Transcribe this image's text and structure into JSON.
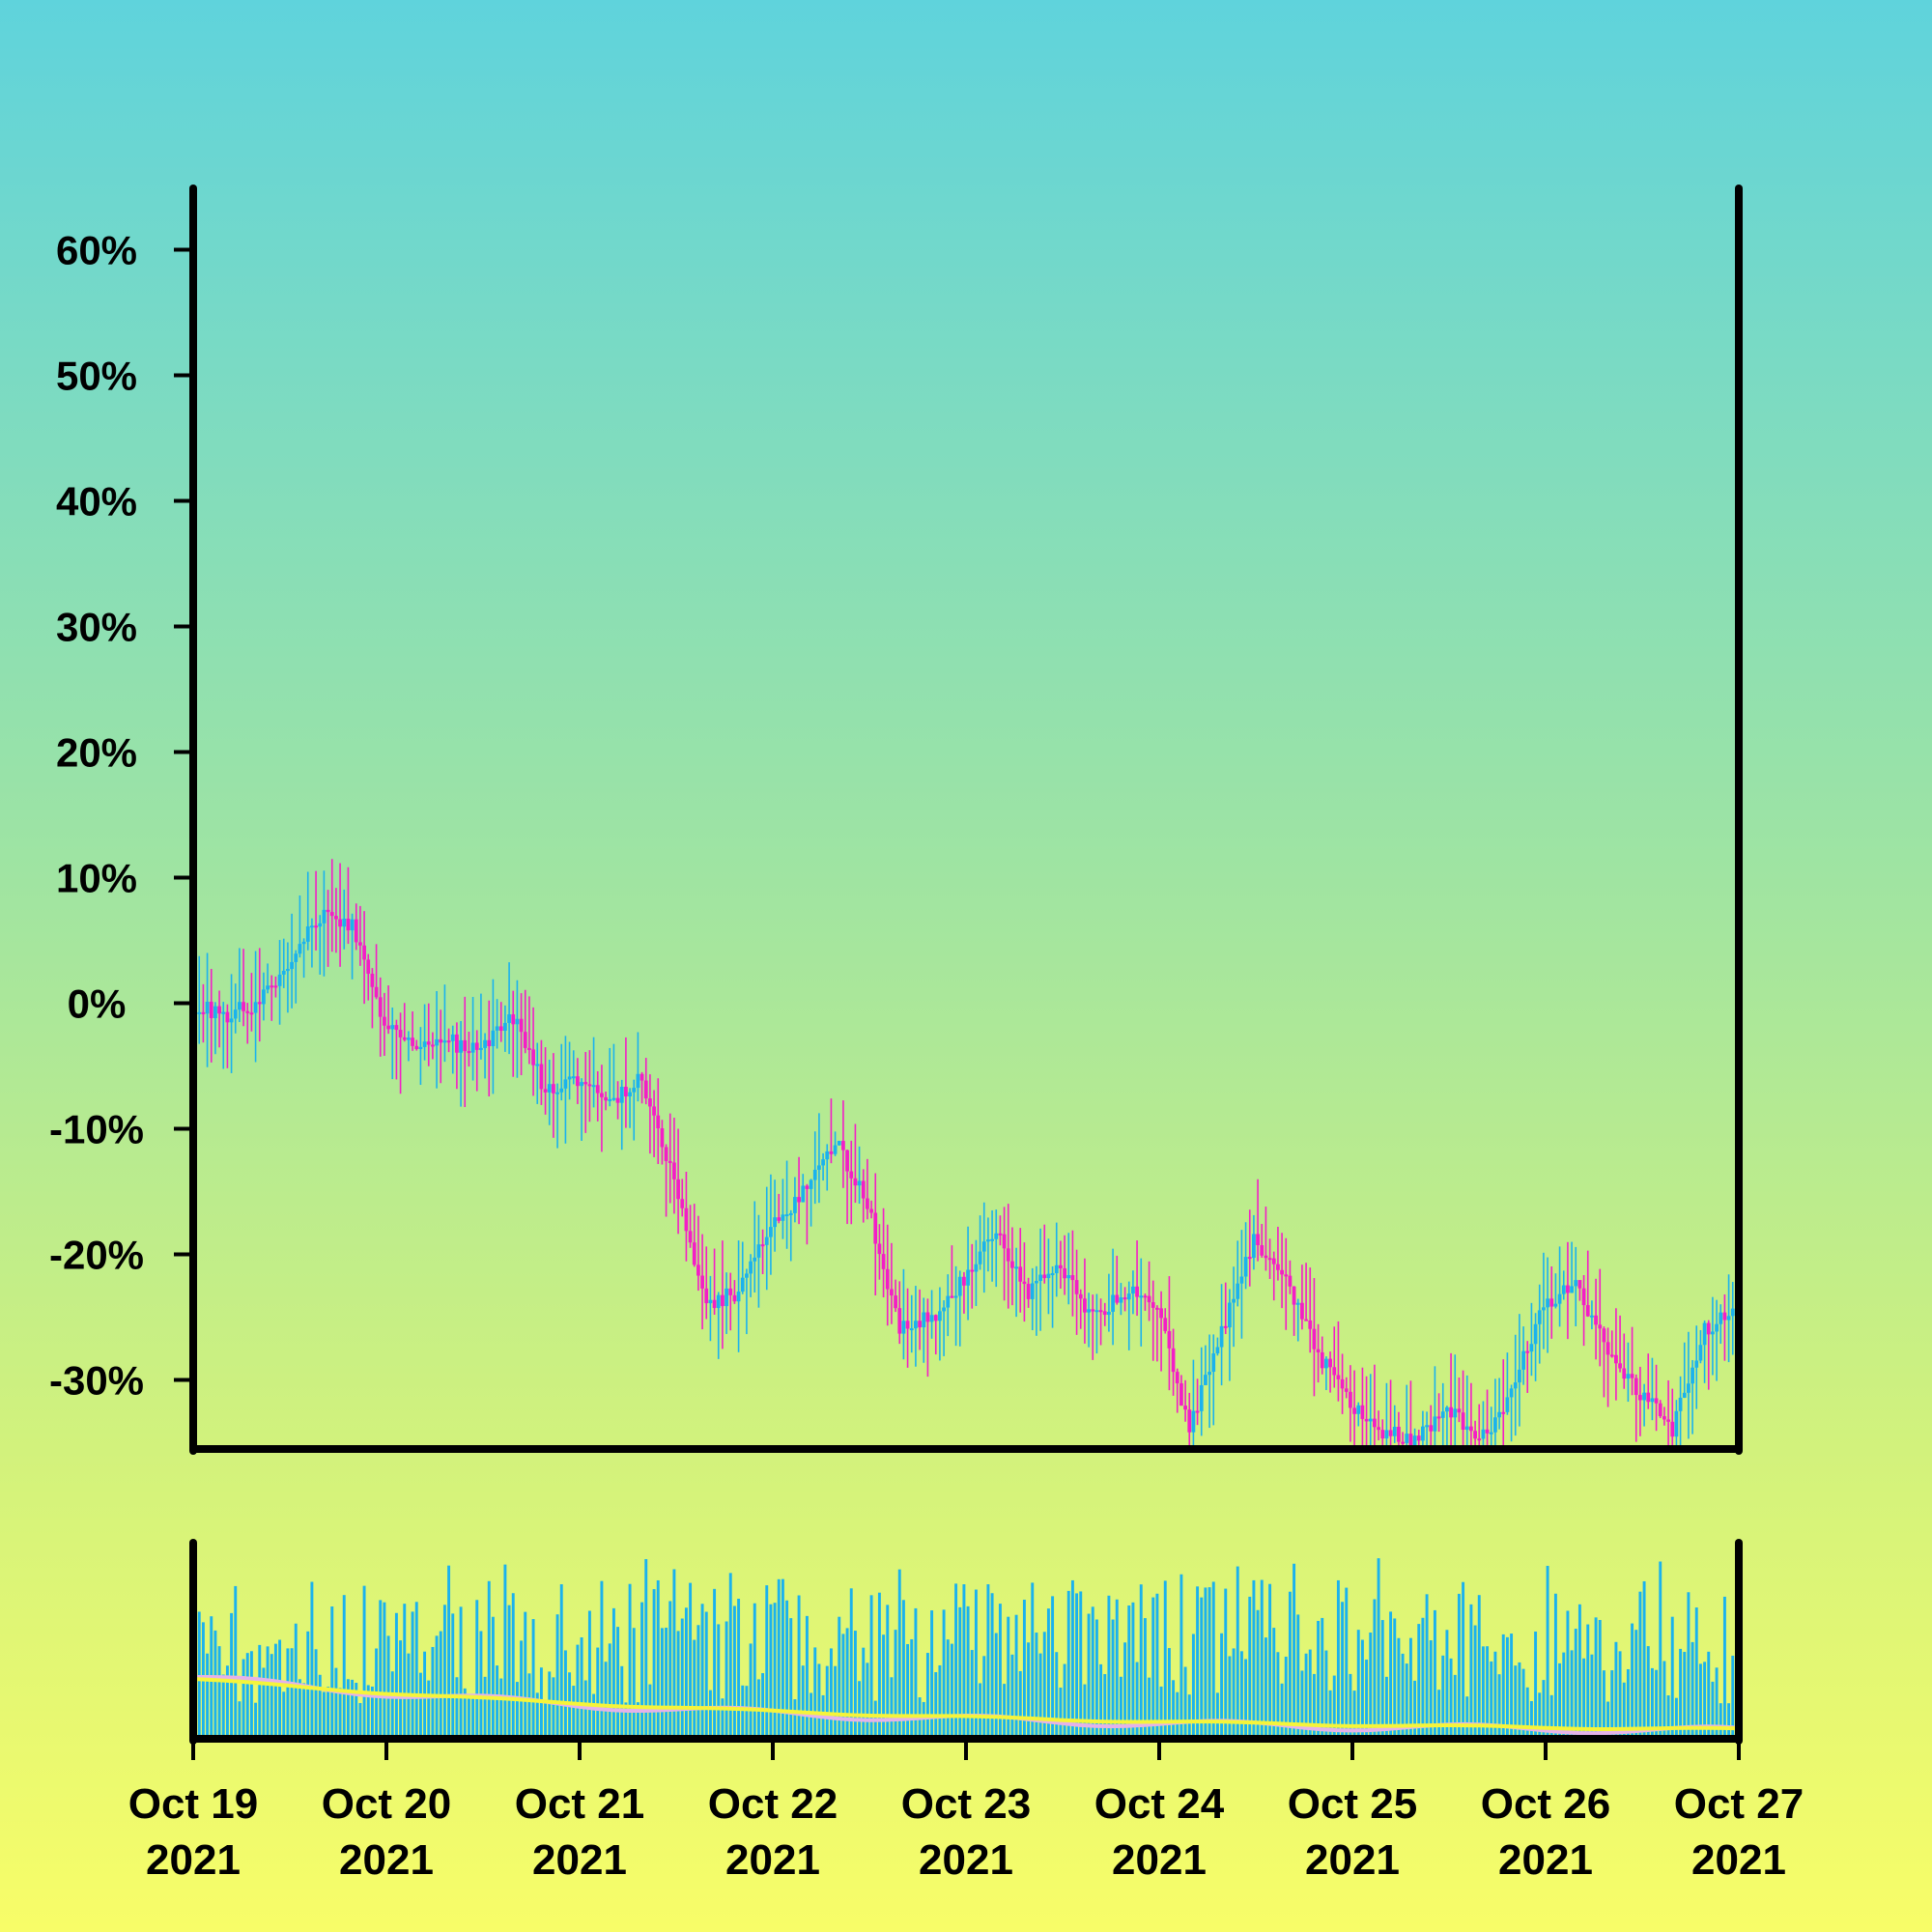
{
  "chart_data": {
    "type": "candlestick",
    "title": "",
    "xlabel": "",
    "ylabel": "",
    "y_unit": "%",
    "ylim": [
      -35.5,
      64.5
    ],
    "xlim": [
      "2021-10-19",
      "2021-10-27"
    ],
    "y_ticks": [
      {
        "value": 60,
        "label": "60%"
      },
      {
        "value": 50,
        "label": "50%"
      },
      {
        "value": 40,
        "label": "40%"
      },
      {
        "value": 30,
        "label": "30%"
      },
      {
        "value": 20,
        "label": "20%"
      },
      {
        "value": 10,
        "label": "10%"
      },
      {
        "value": 0,
        "label": "0%"
      },
      {
        "value": -10,
        "label": "-10%"
      },
      {
        "value": -20,
        "label": "-20%"
      },
      {
        "value": -30,
        "label": "-30%"
      }
    ],
    "x_ticks": [
      {
        "date": "2021-10-19",
        "line1": "Oct 19",
        "line2": "2021"
      },
      {
        "date": "2021-10-20",
        "line1": "Oct 20",
        "line2": "2021"
      },
      {
        "date": "2021-10-21",
        "line1": "Oct 21",
        "line2": "2021"
      },
      {
        "date": "2021-10-22",
        "line1": "Oct 22",
        "line2": "2021"
      },
      {
        "date": "2021-10-23",
        "line1": "Oct 23",
        "line2": "2021"
      },
      {
        "date": "2021-10-24",
        "line1": "Oct 24",
        "line2": "2021"
      },
      {
        "date": "2021-10-25",
        "line1": "Oct 25",
        "line2": "2021"
      },
      {
        "date": "2021-10-26",
        "line1": "Oct 26",
        "line2": "2021"
      },
      {
        "date": "2021-10-27",
        "line1": "Oct 27",
        "line2": "2021"
      }
    ],
    "close_path": [
      [
        "2021-10-19T00:00",
        0
      ],
      [
        "2021-10-19T04:00",
        -1
      ],
      [
        "2021-10-19T08:00",
        0
      ],
      [
        "2021-10-19T12:00",
        3
      ],
      [
        "2021-10-19T16:00",
        7
      ],
      [
        "2021-10-19T20:00",
        6
      ],
      [
        "2021-10-20T00:00",
        -2
      ],
      [
        "2021-10-20T04:00",
        -3
      ],
      [
        "2021-10-20T08:00",
        -3
      ],
      [
        "2021-10-20T12:00",
        -4
      ],
      [
        "2021-10-20T16:00",
        -1
      ],
      [
        "2021-10-20T20:00",
        -7
      ],
      [
        "2021-10-21T00:00",
        -6
      ],
      [
        "2021-10-21T04:00",
        -8
      ],
      [
        "2021-10-21T08:00",
        -6
      ],
      [
        "2021-10-21T12:00",
        -14
      ],
      [
        "2021-10-21T16:00",
        -24
      ],
      [
        "2021-10-21T20:00",
        -23
      ],
      [
        "2021-10-22T00:00",
        -18
      ],
      [
        "2021-10-22T04:00",
        -15
      ],
      [
        "2021-10-22T08:00",
        -11
      ],
      [
        "2021-10-22T12:00",
        -16
      ],
      [
        "2021-10-22T16:00",
        -26
      ],
      [
        "2021-10-22T20:00",
        -25
      ],
      [
        "2021-10-23T00:00",
        -22
      ],
      [
        "2021-10-23T04:00",
        -18
      ],
      [
        "2021-10-23T08:00",
        -23
      ],
      [
        "2021-10-23T12:00",
        -21
      ],
      [
        "2021-10-23T16:00",
        -25
      ],
      [
        "2021-10-23T20:00",
        -23
      ],
      [
        "2021-10-24T00:00",
        -24
      ],
      [
        "2021-10-24T04:00",
        -34
      ],
      [
        "2021-10-24T08:00",
        -26
      ],
      [
        "2021-10-24T12:00",
        -19
      ],
      [
        "2021-10-24T16:00",
        -22
      ],
      [
        "2021-10-24T20:00",
        -28
      ],
      [
        "2021-10-25T00:00",
        -32
      ],
      [
        "2021-10-25T04:00",
        -34
      ],
      [
        "2021-10-25T08:00",
        -35
      ],
      [
        "2021-10-25T12:00",
        -32
      ],
      [
        "2021-10-25T16:00",
        -35
      ],
      [
        "2021-10-25T20:00",
        -31
      ],
      [
        "2021-10-26T00:00",
        -24
      ],
      [
        "2021-10-26T04:00",
        -22
      ],
      [
        "2021-10-26T08:00",
        -28
      ],
      [
        "2021-10-26T12:00",
        -31
      ],
      [
        "2021-10-26T16:00",
        -34
      ],
      [
        "2021-10-26T20:00",
        -26
      ],
      [
        "2021-10-27T00:00",
        -24
      ]
    ],
    "colors": {
      "up": "#1ab2ee",
      "down": "#f41dc7",
      "volume": "#1ab2ee",
      "volume_ma_short": "#e4b2ea",
      "volume_ma_long": "#f5f53a",
      "axis": "#000000"
    },
    "candles_per_day": 48,
    "volume_panel": {
      "ylim": [
        0,
        100
      ],
      "shown": true
    }
  }
}
